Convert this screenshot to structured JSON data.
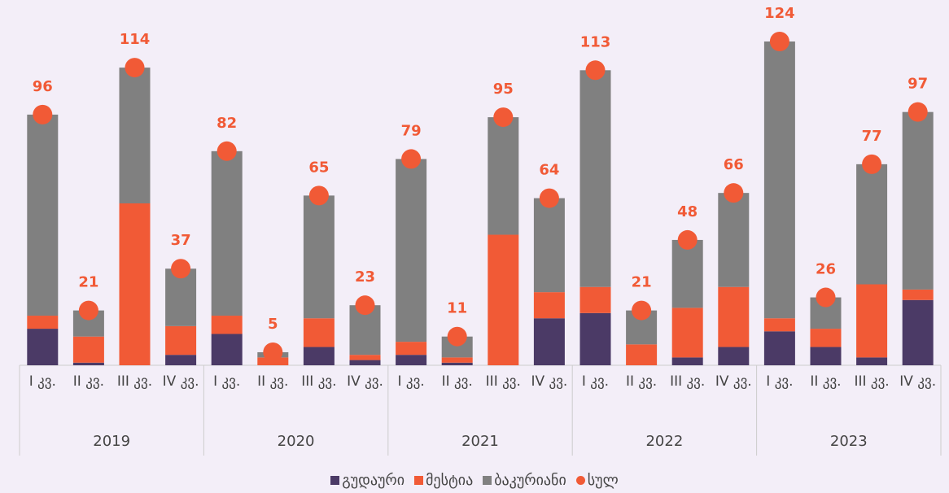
{
  "chart_data": {
    "type": "stacked-bar",
    "categories": [
      "I კვ.",
      "II კვ.",
      "III კვ.",
      "IV კვ.",
      "I კვ.",
      "II კვ.",
      "III კვ.",
      "IV კვ.",
      "I კვ.",
      "II კვ.",
      "III კვ.",
      "IV კვ.",
      "I კვ.",
      "II კვ.",
      "III კვ.",
      "IV კვ.",
      "I კვ.",
      "II კვ.",
      "III კვ.",
      "IV კვ."
    ],
    "groups": [
      "2019",
      "2020",
      "2021",
      "2022",
      "2023"
    ],
    "series": [
      {
        "name": "გუდაური",
        "color": "#4b3a66",
        "values": [
          14,
          1,
          0,
          4,
          12,
          0,
          7,
          2,
          4,
          1,
          0,
          18,
          20,
          0,
          3,
          7,
          13,
          7,
          3,
          25
        ]
      },
      {
        "name": "მესტია",
        "color": "#f15a36",
        "values": [
          5,
          10,
          62,
          11,
          7,
          3,
          11,
          2,
          5,
          2,
          50,
          10,
          10,
          8,
          19,
          23,
          5,
          7,
          28,
          4
        ]
      },
      {
        "name": "ბაკურიანი",
        "color": "#808080",
        "values": [
          77,
          10,
          52,
          22,
          63,
          2,
          47,
          19,
          70,
          8,
          45,
          36,
          83,
          13,
          26,
          36,
          106,
          12,
          46,
          68
        ]
      },
      {
        "name": "სულ",
        "color": "#f15a36",
        "marker": "circle",
        "values": [
          96,
          21,
          114,
          37,
          82,
          5,
          65,
          23,
          79,
          11,
          95,
          64,
          113,
          21,
          48,
          66,
          124,
          26,
          77,
          97
        ]
      }
    ],
    "legend": "bottom"
  }
}
